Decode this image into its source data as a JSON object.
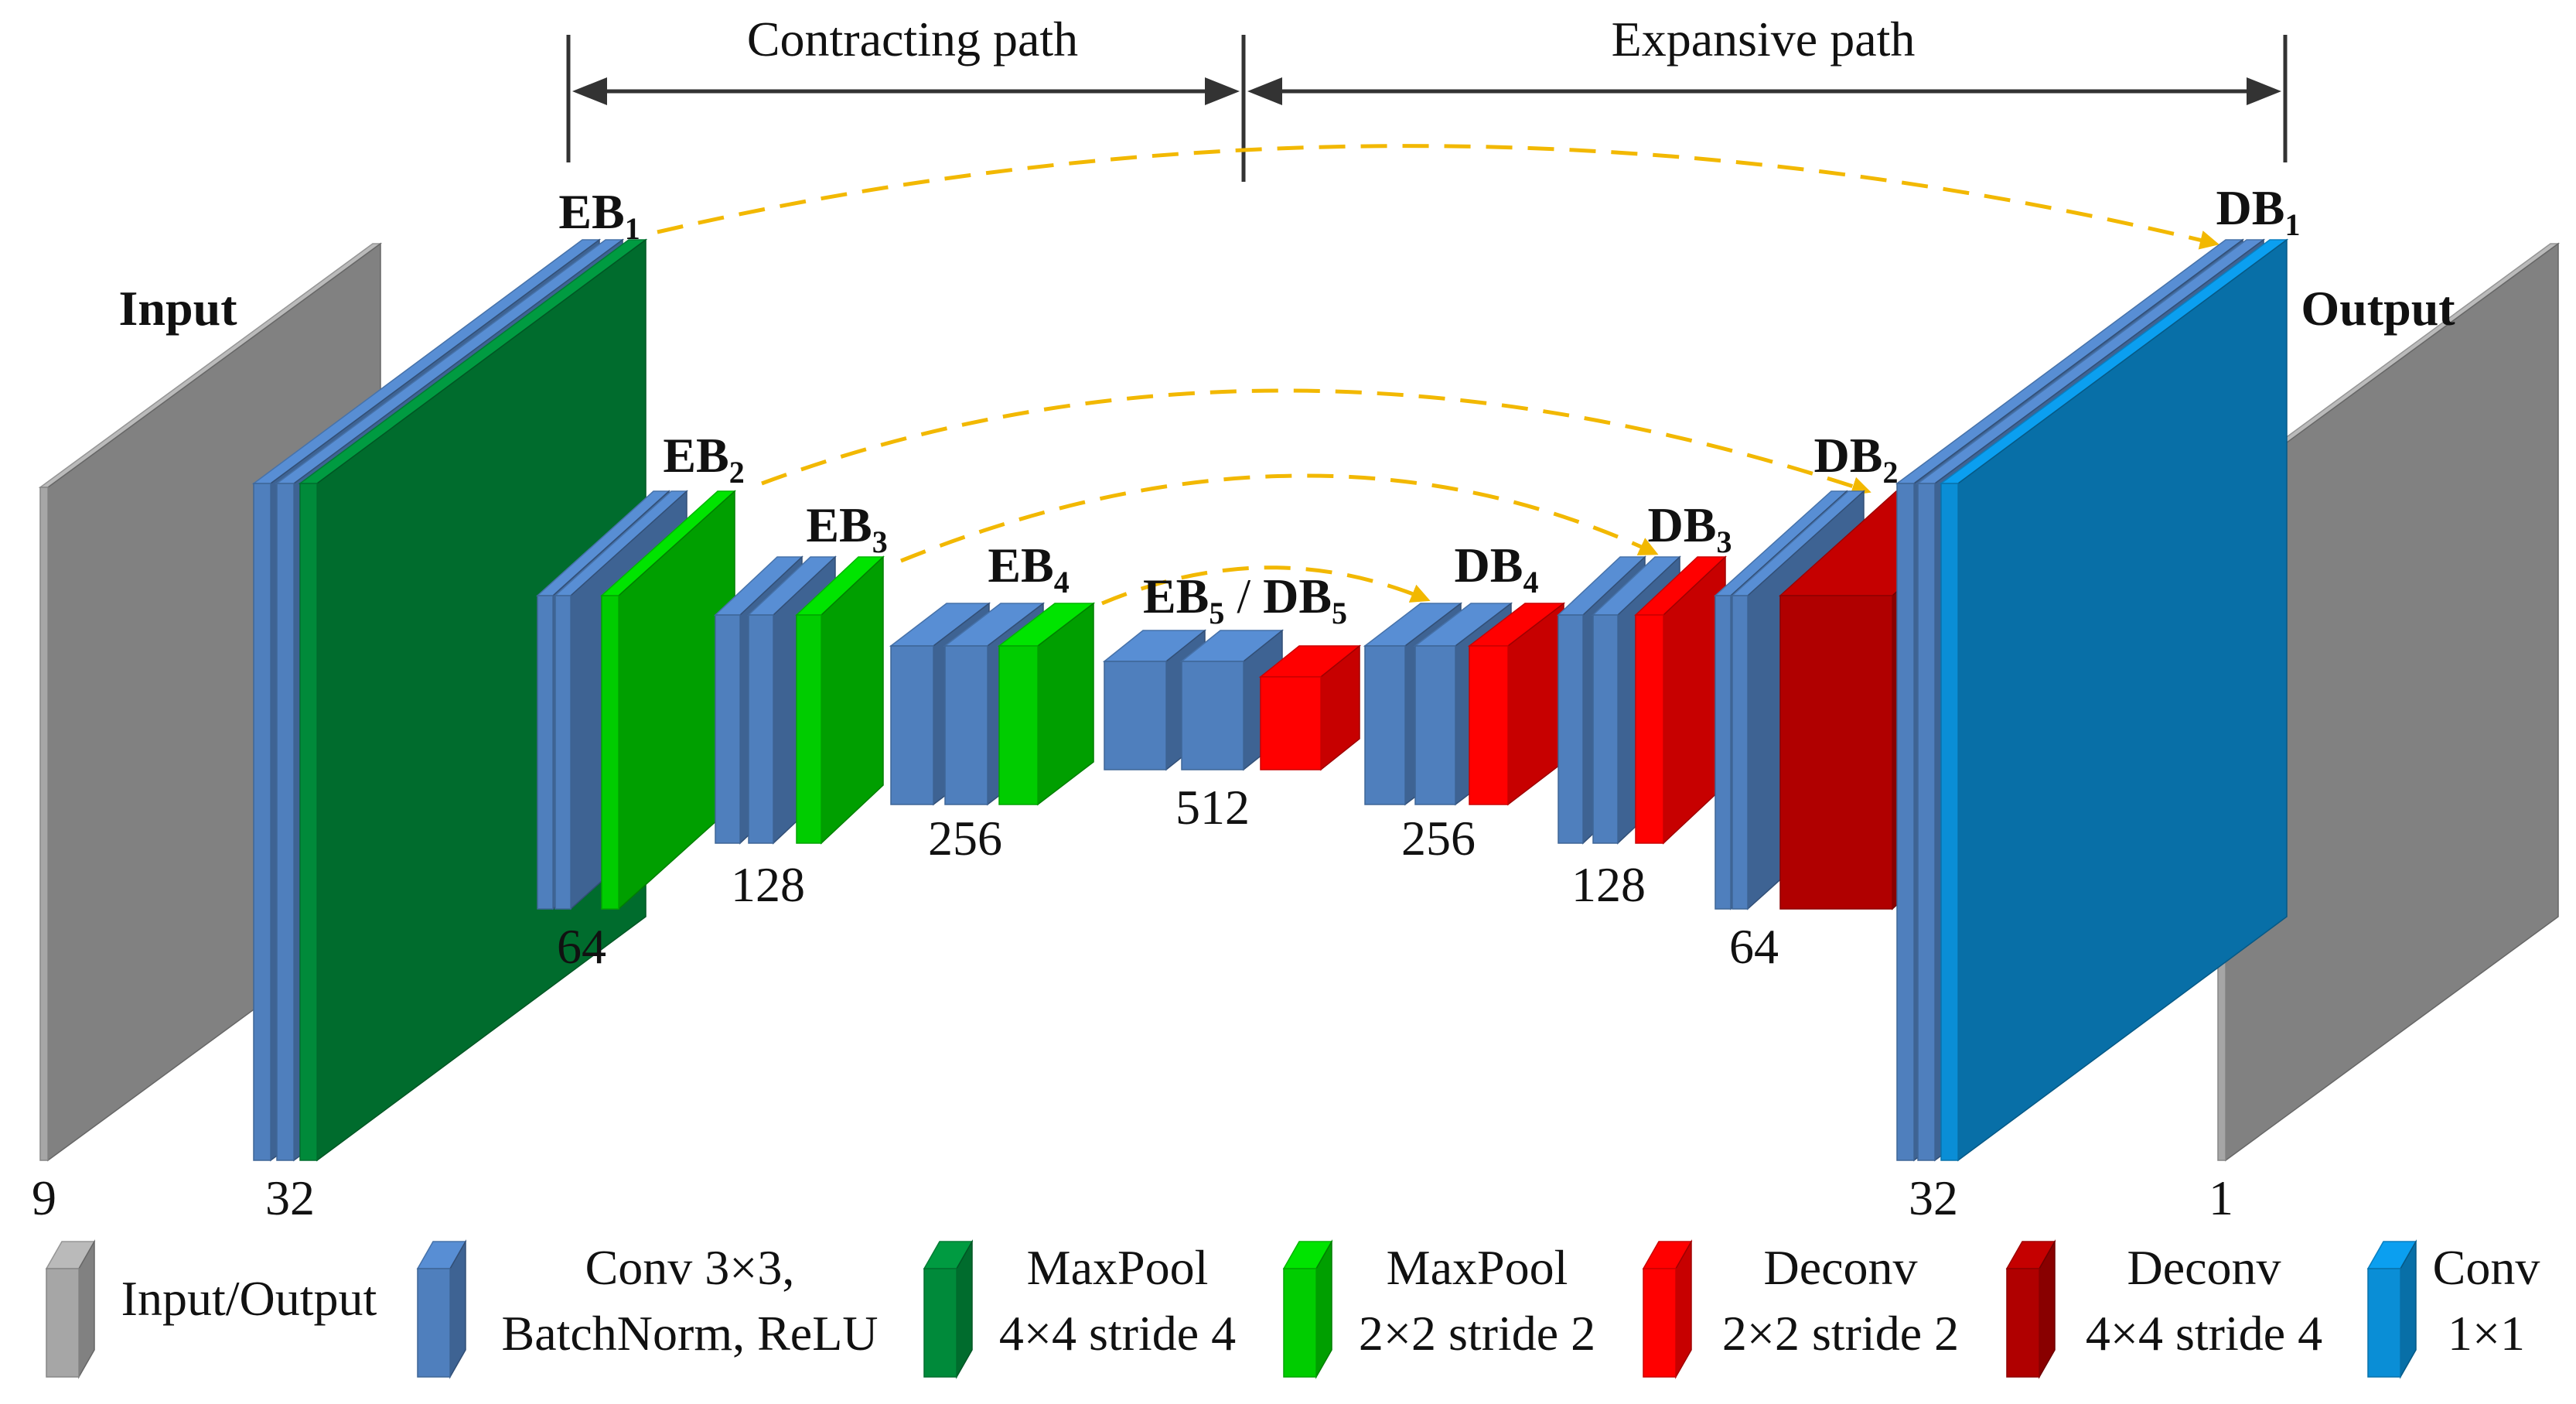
{
  "header": {
    "contracting_label": "Contracting path",
    "expansive_label": "Expansive path"
  },
  "labels": {
    "input": "Input",
    "output": "Output",
    "eb1": {
      "main": "EB",
      "sub": "1"
    },
    "eb2": {
      "main": "EB",
      "sub": "2"
    },
    "eb3": {
      "main": "EB",
      "sub": "3"
    },
    "eb4": {
      "main": "EB",
      "sub": "4"
    },
    "eb5_db5": {
      "main1": "EB",
      "sub1": "5",
      "sep": " / ",
      "main2": "DB",
      "sub2": "5"
    },
    "db1": {
      "main": "DB",
      "sub": "1"
    },
    "db2": {
      "main": "DB",
      "sub": "2"
    },
    "db3": {
      "main": "DB",
      "sub": "3"
    },
    "db4": {
      "main": "DB",
      "sub": "4"
    }
  },
  "channels": {
    "input": "9",
    "eb1": "32",
    "eb2": "64",
    "eb3": "128",
    "eb4": "256",
    "bottleneck": "512",
    "db4": "256",
    "db3": "128",
    "db2": "64",
    "db1": "32",
    "output": "1"
  },
  "legend": {
    "io": {
      "line1": "Input/Output"
    },
    "conv3": {
      "line1": "Conv 3×3,",
      "line2": "BatchNorm, ReLU"
    },
    "maxpool4": {
      "line1": "MaxPool",
      "line2": "4×4 stride 4"
    },
    "maxpool2": {
      "line1": "MaxPool",
      "line2": "2×2 stride 2"
    },
    "deconv2": {
      "line1": "Deconv",
      "line2": "2×2 stride 2"
    },
    "deconv4": {
      "line1": "Deconv",
      "line2": "4×4 stride 4"
    },
    "conv1": {
      "line1": "Conv",
      "line2": "1×1"
    }
  },
  "colors": {
    "gray": "#a6a6a6",
    "conv_blue": "#4f7fbd",
    "maxpool_dark_green": "#008a3a",
    "maxpool_green": "#00cc00",
    "deconv_red": "#ff0000",
    "deconv_dark_red": "#b00000",
    "conv1_blue": "#0a8ed6",
    "skip_arrow": "#f2b800",
    "path_arrow": "#333333"
  }
}
